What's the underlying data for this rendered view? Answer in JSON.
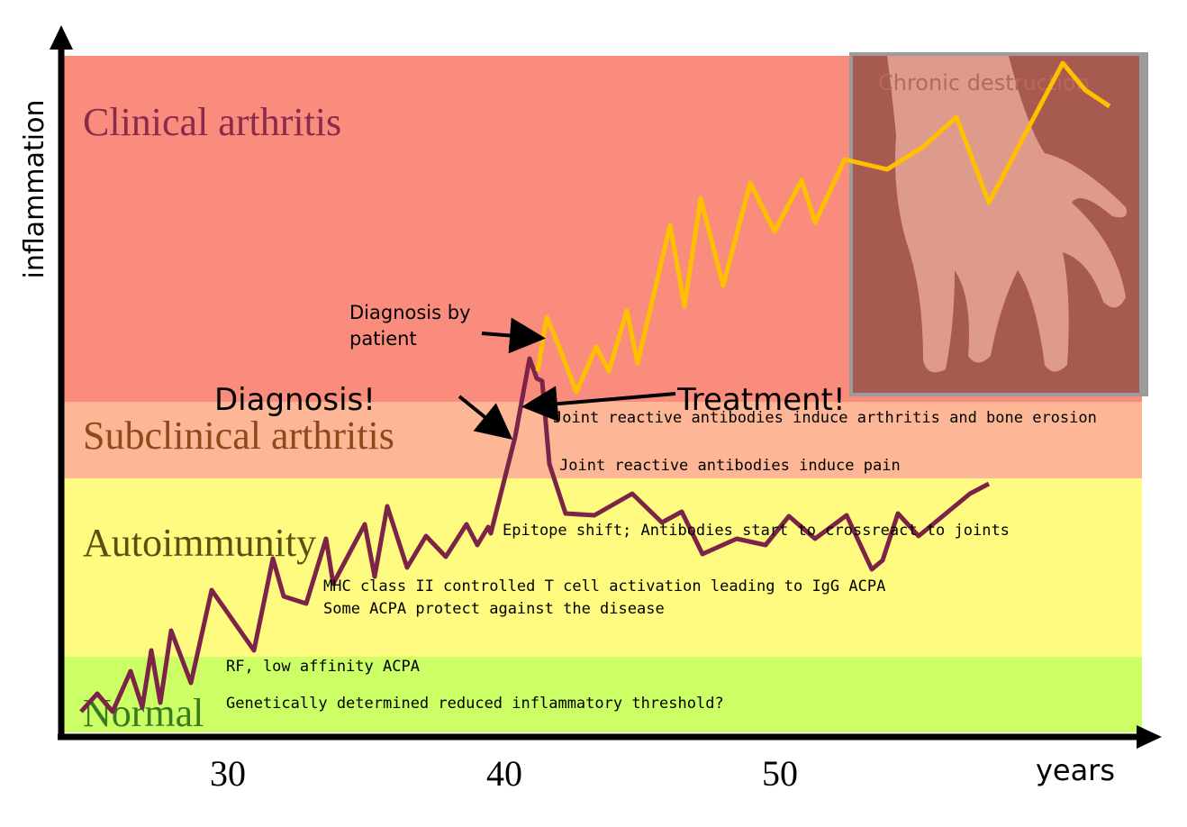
{
  "axes": {
    "y_label": "inflammation",
    "x_label": "years",
    "x_ticks": [
      "30",
      "40",
      "50"
    ]
  },
  "stages": [
    "Clinical arthritis",
    "Subclinical arthritis",
    "Autoimmunity",
    "Normal"
  ],
  "image_caption": "Chronic destruction",
  "callouts": {
    "patient": "Diagnosis by\npatient",
    "diagnosis": "Diagnosis!",
    "treatment": "Treatment!"
  },
  "events": [
    "Joint reactive antibodies induce arthritis and bone erosion",
    "Joint reactive antibodies induce pain",
    "Epitope shift; Antibodies start to crossreact to joints",
    "MHC class II controlled T cell activation leading to IgG ACPA",
    "Some ACPA protect against the disease",
    "RF, low affinity ACPA",
    "Genetically determined reduced inflammatory threshold?"
  ]
}
